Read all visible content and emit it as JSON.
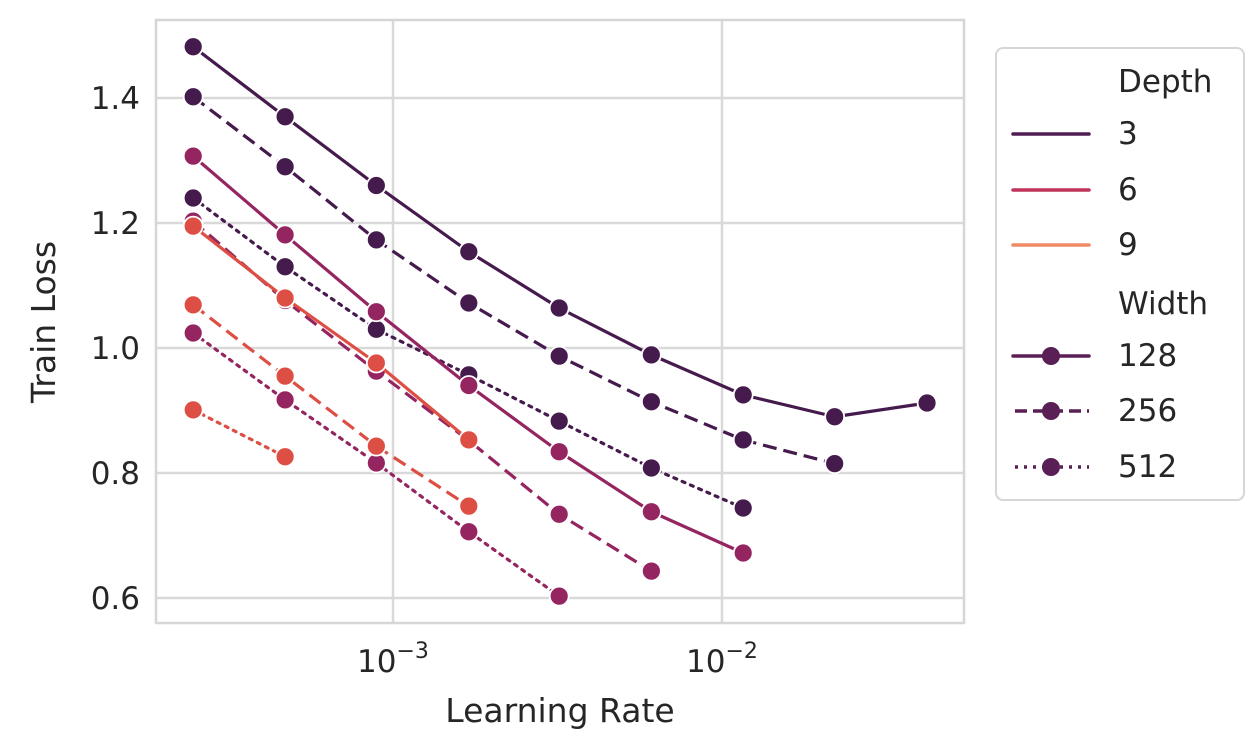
{
  "chart_data": {
    "type": "line",
    "title": "",
    "xlabel": "Learning Rate",
    "ylabel": "Train Loss",
    "xscale": "log",
    "x_tick_labels": [
      "10^-3",
      "10^-2"
    ],
    "x_ticks": [
      0.001,
      0.01
    ],
    "y_tick_labels": [
      "0.6",
      "0.8",
      "1.0",
      "1.2",
      "1.4"
    ],
    "y_ticks": [
      0.6,
      0.8,
      1.0,
      1.2,
      1.4
    ],
    "xlim": [
      0.00018,
      0.06
    ],
    "ylim": [
      0.56,
      1.525
    ],
    "grid": true,
    "legend_position": "outside right",
    "x": [
      0.000247,
      0.00047,
      0.00089,
      0.0017,
      0.0032,
      0.0061,
      0.0116,
      0.022,
      0.042
    ],
    "hue": {
      "name": "Depth",
      "levels": [
        "3",
        "6",
        "9"
      ]
    },
    "style": {
      "name": "Width",
      "levels": [
        "128",
        "256",
        "512"
      ]
    },
    "series": [
      {
        "name": "Depth 3, Width 128",
        "depth": "3",
        "width": "128",
        "dash": "solid",
        "values": [
          1.482,
          1.37,
          1.26,
          1.154,
          1.064,
          0.989,
          0.925,
          0.89,
          0.912
        ]
      },
      {
        "name": "Depth 3, Width 256",
        "depth": "3",
        "width": "256",
        "dash": "dashed",
        "values": [
          1.402,
          1.29,
          1.173,
          1.072,
          0.987,
          0.914,
          0.853,
          0.815
        ]
      },
      {
        "name": "Depth 3, Width 512",
        "depth": "3",
        "width": "512",
        "dash": "dotted",
        "values": [
          1.24,
          1.13,
          1.03,
          0.957,
          0.883,
          0.808,
          0.744
        ]
      },
      {
        "name": "Depth 6, Width 128",
        "depth": "6",
        "width": "128",
        "dash": "solid",
        "values": [
          1.307,
          1.181,
          1.058,
          0.94,
          0.834,
          0.738,
          0.672
        ]
      },
      {
        "name": "Depth 6, Width 256",
        "depth": "6",
        "width": "256",
        "dash": "dashed",
        "values": [
          1.203,
          1.076,
          0.963,
          0.852,
          0.734,
          0.643
        ]
      },
      {
        "name": "Depth 6, Width 512",
        "depth": "6",
        "width": "512",
        "dash": "dotted",
        "values": [
          1.024,
          0.917,
          0.816,
          0.706,
          0.603
        ]
      },
      {
        "name": "Depth 9, Width 128",
        "depth": "9",
        "width": "128",
        "dash": "solid",
        "values": [
          1.195,
          1.08,
          0.976,
          0.853
        ]
      },
      {
        "name": "Depth 9, Width 256",
        "depth": "9",
        "width": "256",
        "dash": "dashed",
        "values": [
          1.069,
          0.955,
          0.843,
          0.747
        ]
      },
      {
        "name": "Depth 9, Width 512",
        "depth": "9",
        "width": "512",
        "dash": "dotted",
        "values": [
          0.901,
          0.826
        ]
      }
    ]
  },
  "colors": {
    "depth_markers": {
      "3": "#451a4d",
      "6": "#952560",
      "9": "#dd4f44"
    },
    "depth_legend": {
      "3": "#4f1b50",
      "6": "#c0345a",
      "9": "#ef8a65"
    },
    "width_legend": "#5a1f55",
    "grid": "#d9d9d9",
    "axes_frame": "#d6d6d6",
    "text": "#262626"
  },
  "legend": {
    "depth_title": "Depth",
    "depth_items": [
      "3",
      "6",
      "9"
    ],
    "width_title": "Width",
    "width_items": [
      "128",
      "256",
      "512"
    ]
  }
}
